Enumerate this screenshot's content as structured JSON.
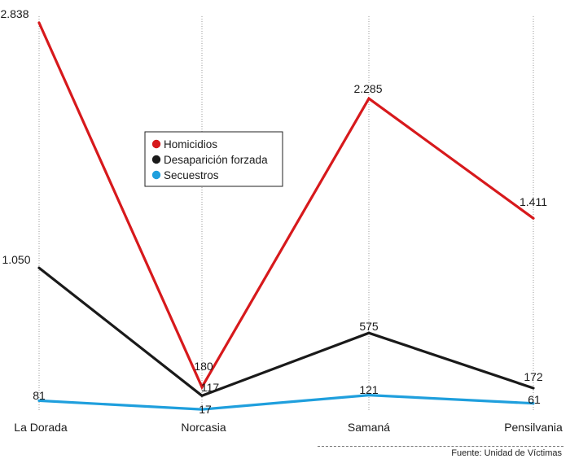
{
  "chart_data": {
    "type": "line",
    "title": "",
    "xlabel": "",
    "ylabel": "",
    "categories": [
      "La Dorada",
      "Norcasia",
      "Samaná",
      "Pensilvania"
    ],
    "ylim": [
      0,
      2900
    ],
    "grid": "vertical dotted lines at each category",
    "legend_position": "upper-center",
    "series": [
      {
        "name": "Homicidios",
        "color": "#d7191c",
        "values": [
          2838,
          180,
          2285,
          1411
        ],
        "labels": [
          "2.838",
          "180",
          "2.285",
          "1.411"
        ]
      },
      {
        "name": "Desaparición forzada",
        "color": "#1a1a1a",
        "values": [
          1050,
          117,
          575,
          172
        ],
        "labels": [
          "1.050",
          "117",
          "575",
          "172"
        ]
      },
      {
        "name": "Secuestros",
        "color": "#1f9fdd",
        "values": [
          81,
          17,
          121,
          61
        ],
        "labels": [
          "81",
          "17",
          "121",
          "61"
        ]
      }
    ]
  },
  "source": "Fuente: Unidad de Víctimas"
}
